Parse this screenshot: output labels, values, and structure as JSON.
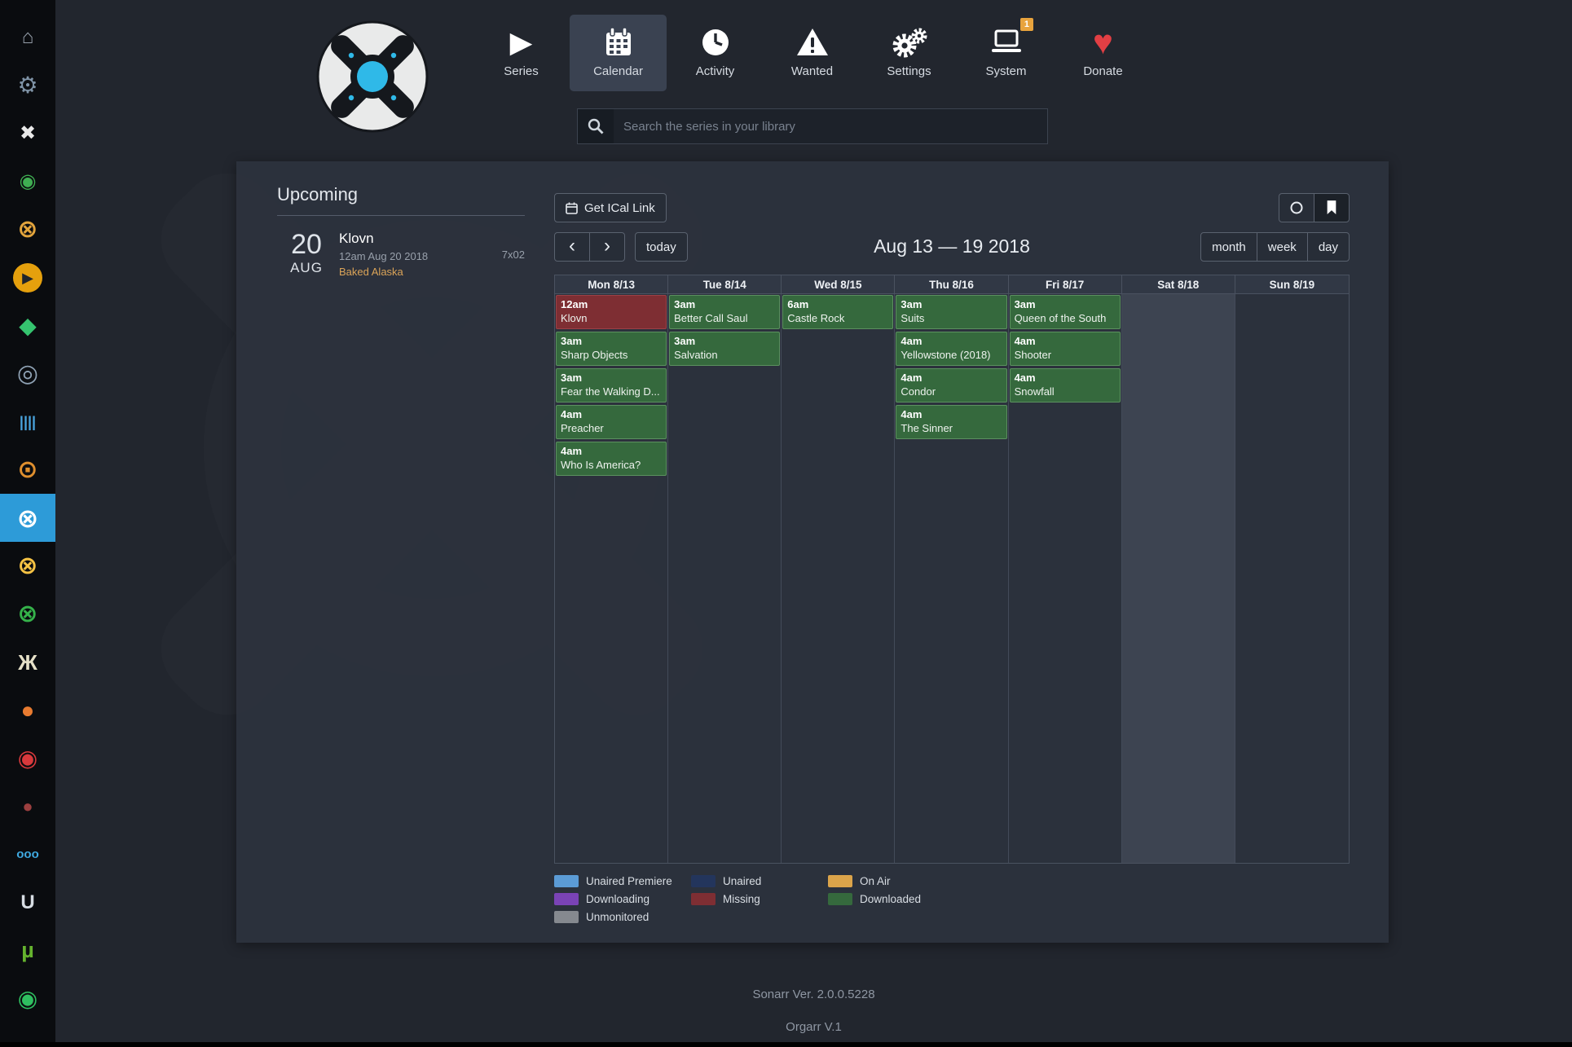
{
  "colors": {
    "accent_blue": "#2d9bd8",
    "page_bg": "#22262e",
    "panel_bg": "#2c323d",
    "downloaded_green": "#35693d",
    "missing_red": "#7e2e33",
    "badge_orange": "#e8a33d",
    "donate_red": "#e23f44",
    "episode_link_orange": "#dba458"
  },
  "sidebar": {
    "items": [
      {
        "name": "home",
        "glyph": "⌂",
        "color": "#97a0ab"
      },
      {
        "name": "settings-gear",
        "glyph": "⚙",
        "color": "#7f93a6",
        "size": 28
      },
      {
        "name": "organizr",
        "glyph": "✖",
        "color": "#e8e8e8"
      },
      {
        "name": "app-green-ring",
        "glyph": "◉",
        "color": "#3fae52"
      },
      {
        "name": "app-orange-ring",
        "glyph": "⊗",
        "color": "#e2a43c",
        "size": 30
      },
      {
        "name": "plex",
        "glyph": "▶",
        "color": "#1f242b",
        "bg": "#e5a00d",
        "shape": "circle",
        "size": 18
      },
      {
        "name": "app-green-diamond",
        "glyph": "◆",
        "color": "#35c46f",
        "size": 28
      },
      {
        "name": "app-lens",
        "glyph": "◎",
        "color": "#8fa2b4",
        "size": 30
      },
      {
        "name": "app-equalizer",
        "glyph": "||||",
        "color": "#49a3dd",
        "size": 18
      },
      {
        "name": "jackett-search",
        "glyph": "⊙",
        "color": "#df8f2e",
        "size": 30
      },
      {
        "name": "sonarr",
        "glyph": "⊗",
        "color": "#ffffff",
        "size": 32,
        "active": true
      },
      {
        "name": "radarr",
        "glyph": "⊗",
        "color": "#f6c344",
        "size": 30
      },
      {
        "name": "app-green-x",
        "glyph": "⊗",
        "color": "#35b24a",
        "size": 30
      },
      {
        "name": "app-crossed-sticks",
        "glyph": "Ж",
        "color": "#e6e1c8",
        "size": 26
      },
      {
        "name": "app-orange-disc",
        "glyph": "●",
        "color": "#e87b30",
        "size": 28
      },
      {
        "name": "app-shield",
        "glyph": "◉",
        "color": "#d8393c",
        "size": 28
      },
      {
        "name": "app-red-cluster",
        "glyph": "●",
        "color": "#9c3f3f",
        "size": 22
      },
      {
        "name": "app-ooo",
        "glyph": "ooo",
        "color": "#3fa9e0",
        "size": 15
      },
      {
        "name": "app-u",
        "glyph": "U",
        "color": "#d7dde3",
        "size": 24
      },
      {
        "name": "utorrent",
        "glyph": "µ",
        "color": "#65b32e",
        "size": 27
      },
      {
        "name": "app-dark-green-ring",
        "glyph": "◉",
        "color": "#2fbf60",
        "size": 28
      },
      {
        "name": "app-green-square",
        "glyph": "■",
        "color": "#3fae52",
        "size": 26
      }
    ]
  },
  "header": {
    "nav": [
      {
        "label": "Series"
      },
      {
        "label": "Calendar",
        "active": true
      },
      {
        "label": "Activity"
      },
      {
        "label": "Wanted"
      },
      {
        "label": "Settings"
      },
      {
        "label": "System",
        "badge": "1"
      },
      {
        "label": "Donate"
      }
    ],
    "search_placeholder": "Search the series in your library"
  },
  "upcoming": {
    "title": "Upcoming",
    "events": [
      {
        "day": "20",
        "month": "AUG",
        "series": "Klovn",
        "datetime": "12am Aug 20 2018",
        "episode_title": "Baked Alaska",
        "episode_code": "7x02"
      }
    ]
  },
  "calendar": {
    "ical_button": "Get ICal Link",
    "today_button": "today",
    "title": "Aug 13 — 19 2018",
    "views": [
      "month",
      "week",
      "day"
    ],
    "days": [
      {
        "label": "Mon 8/13",
        "events": [
          {
            "time": "12am",
            "title": "Klovn",
            "status": "missing"
          },
          {
            "time": "3am",
            "title": "Sharp Objects",
            "status": "downloaded"
          },
          {
            "time": "3am",
            "title": "Fear the Walking D...",
            "status": "downloaded"
          },
          {
            "time": "4am",
            "title": "Preacher",
            "status": "downloaded"
          },
          {
            "time": "4am",
            "title": "Who Is America?",
            "status": "downloaded"
          }
        ]
      },
      {
        "label": "Tue 8/14",
        "events": [
          {
            "time": "3am",
            "title": "Better Call Saul",
            "status": "downloaded"
          },
          {
            "time": "3am",
            "title": "Salvation",
            "status": "downloaded"
          }
        ]
      },
      {
        "label": "Wed 8/15",
        "events": [
          {
            "time": "6am",
            "title": "Castle Rock",
            "status": "downloaded"
          }
        ]
      },
      {
        "label": "Thu 8/16",
        "events": [
          {
            "time": "3am",
            "title": "Suits",
            "status": "downloaded"
          },
          {
            "time": "4am",
            "title": "Yellowstone (2018)",
            "status": "downloaded"
          },
          {
            "time": "4am",
            "title": "Condor",
            "status": "downloaded"
          },
          {
            "time": "4am",
            "title": "The Sinner",
            "status": "downloaded"
          }
        ]
      },
      {
        "label": "Fri 8/17",
        "events": [
          {
            "time": "3am",
            "title": "Queen of the South",
            "status": "downloaded"
          },
          {
            "time": "4am",
            "title": "Shooter",
            "status": "downloaded"
          },
          {
            "time": "4am",
            "title": "Snowfall",
            "status": "downloaded"
          }
        ]
      },
      {
        "label": "Sat 8/18",
        "today": true,
        "events": []
      },
      {
        "label": "Sun 8/19",
        "events": []
      }
    ],
    "legend": [
      {
        "label": "Unaired Premiere",
        "color": "#5b9bd5"
      },
      {
        "label": "Unaired",
        "color": "#23355c"
      },
      {
        "label": "On Air",
        "color": "#dba44a"
      },
      {
        "label": "Downloading",
        "color": "#7a43b6"
      },
      {
        "label": "Missing",
        "color": "#7e2e33"
      },
      {
        "label": "Downloaded",
        "color": "#35693d"
      },
      {
        "label": "Unmonitored",
        "color": "#85898f"
      }
    ]
  },
  "footer": {
    "line1": "Sonarr Ver. 2.0.0.5228",
    "line2": "Orgarr V.1"
  }
}
